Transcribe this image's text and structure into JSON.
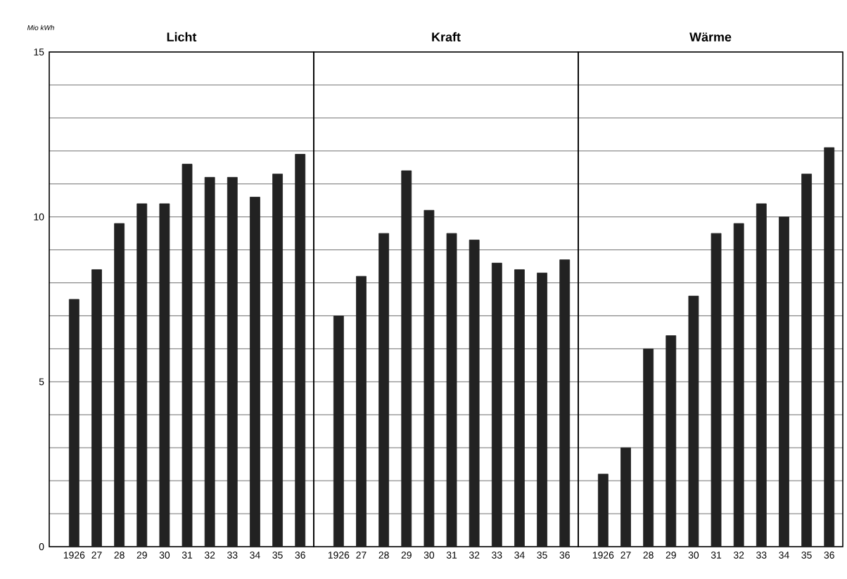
{
  "chart_data": [
    {
      "type": "bar",
      "title": "Licht",
      "ylabel": "Mio kWh",
      "categories": [
        "1926",
        "27",
        "28",
        "29",
        "30",
        "31",
        "32",
        "33",
        "34",
        "35",
        "36"
      ],
      "values": [
        7.5,
        8.4,
        9.8,
        10.4,
        10.4,
        11.6,
        11.2,
        11.2,
        10.6,
        11.3,
        11.9
      ],
      "color": "#222222",
      "ylim": [
        0,
        15
      ],
      "yticks": [
        0,
        {
          "value": 1,
          "label": null
        },
        {
          "value": 2,
          "label": null
        },
        {
          "value": 3,
          "label": null
        },
        {
          "value": 4,
          "label": null
        },
        5,
        {
          "value": 6,
          "label": null
        },
        {
          "value": 7,
          "label": null
        },
        {
          "value": 8,
          "label": null
        },
        {
          "value": 9,
          "label": null
        },
        10,
        {
          "value": 11,
          "label": null
        },
        {
          "value": 12,
          "label": null
        },
        {
          "value": 13,
          "label": null
        },
        {
          "value": 14,
          "label": null
        },
        15
      ],
      "grid": "y"
    },
    {
      "type": "bar",
      "title": "Kraft",
      "categories": [
        "1926",
        "27",
        "28",
        "29",
        "30",
        "31",
        "32",
        "33",
        "34",
        "35",
        "36"
      ],
      "values": [
        7.0,
        8.2,
        9.5,
        11.4,
        10.2,
        9.5,
        9.3,
        8.6,
        8.4,
        8.3,
        8.7
      ],
      "color": "#222222",
      "ylim": [
        0,
        15
      ],
      "yticks": [
        0,
        {
          "value": 1,
          "label": null
        },
        {
          "value": 2,
          "label": null
        },
        {
          "value": 3,
          "label": null
        },
        {
          "value": 4,
          "label": null
        },
        5,
        {
          "value": 6,
          "label": null
        },
        {
          "value": 7,
          "label": null
        },
        {
          "value": 8,
          "label": null
        },
        {
          "value": 9,
          "label": null
        },
        10,
        {
          "value": 11,
          "label": null
        },
        {
          "value": 12,
          "label": null
        },
        {
          "value": 13,
          "label": null
        },
        {
          "value": 14,
          "label": null
        },
        15
      ],
      "grid": "y",
      "tick_labels": "x"
    },
    {
      "type": "bar",
      "title": "Wärme",
      "categories": [
        "1926",
        "27",
        "28",
        "29",
        "30",
        "31",
        "32",
        "33",
        "34",
        "35",
        "36"
      ],
      "values": [
        2.2,
        3.0,
        6.0,
        6.4,
        7.6,
        9.5,
        9.8,
        10.4,
        10.0,
        11.3,
        12.1
      ],
      "color": "#222222",
      "ylim": [
        0,
        15
      ],
      "yticks": [
        0,
        {
          "value": 1,
          "label": null
        },
        {
          "value": 2,
          "label": null
        },
        {
          "value": 3,
          "label": null
        },
        {
          "value": 4,
          "label": null
        },
        5,
        {
          "value": 6,
          "label": null
        },
        {
          "value": 7,
          "label": null
        },
        {
          "value": 8,
          "label": null
        },
        {
          "value": 9,
          "label": null
        },
        10,
        {
          "value": 11,
          "label": null
        },
        {
          "value": 12,
          "label": null
        },
        {
          "value": 13,
          "label": null
        },
        {
          "value": 14,
          "label": null
        },
        15
      ],
      "grid": "y",
      "tick_labels": "x"
    }
  ]
}
